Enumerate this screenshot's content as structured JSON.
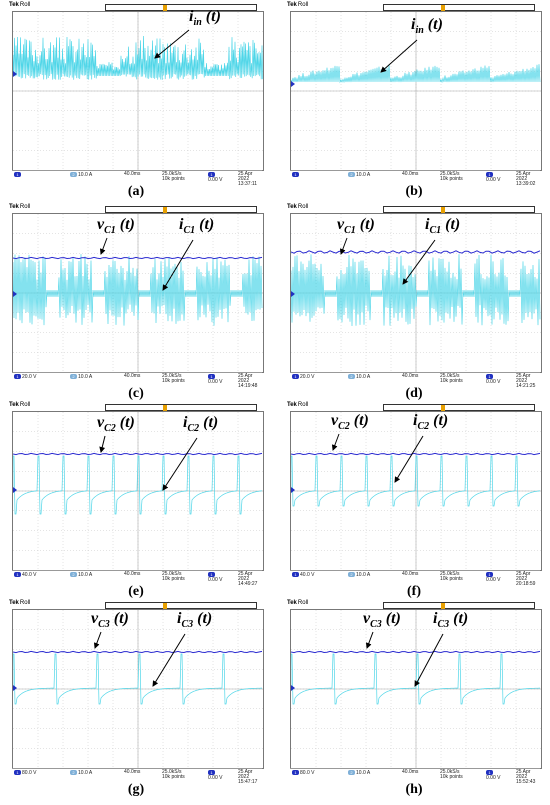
{
  "colors": {
    "ch1": "#2a2ad0",
    "ch2": "#4fd6e8",
    "trigger": "#e8a000"
  },
  "panels": [
    {
      "id": "a",
      "caption": "(a)",
      "labels": [
        {
          "base": "i",
          "sub": "in",
          "suffix": " (t)"
        }
      ],
      "status": {
        "ch1": "",
        "ch2": "10.0 A",
        "timebase": "40.0ms",
        "rate": "25.0kS/s",
        "points": "10k points",
        "trig": "0.00 V",
        "date": "25 Apr 2022",
        "time": "13:37:11"
      }
    },
    {
      "id": "b",
      "caption": "(b)",
      "labels": [
        {
          "base": "i",
          "sub": "in",
          "suffix": " (t)"
        }
      ],
      "status": {
        "ch1": "",
        "ch2": "10.0 A",
        "timebase": "40.0ms",
        "rate": "25.0kS/s",
        "points": "10k points",
        "trig": "0.00 V",
        "date": "25 Apr 2022",
        "time": "13:39:02"
      }
    },
    {
      "id": "c",
      "caption": "(c)",
      "labels": [
        {
          "base": "v",
          "sub": "C1",
          "suffix": " (t)"
        },
        {
          "base": "i",
          "sub": "C1",
          "suffix": " (t)"
        }
      ],
      "status": {
        "ch1": "20.0 V",
        "ch2": "10.0 A",
        "timebase": "40.0ms",
        "rate": "25.0kS/s",
        "points": "10k points",
        "trig": "0.00 V",
        "date": "25 Apr 2022",
        "time": "14:19:48"
      }
    },
    {
      "id": "d",
      "caption": "(d)",
      "labels": [
        {
          "base": "v",
          "sub": "C1",
          "suffix": " (t)"
        },
        {
          "base": "i",
          "sub": "C1",
          "suffix": " (t)"
        }
      ],
      "status": {
        "ch1": "20.0 V",
        "ch2": "10.0 A",
        "timebase": "40.0ms",
        "rate": "25.0kS/s",
        "points": "10k points",
        "trig": "0.00 V",
        "date": "25 Apr 2022",
        "time": "14:21:25"
      }
    },
    {
      "id": "e",
      "caption": "(e)",
      "labels": [
        {
          "base": "v",
          "sub": "C2",
          "suffix": " (t)"
        },
        {
          "base": "i",
          "sub": "C2",
          "suffix": " (t)"
        }
      ],
      "status": {
        "ch1": "40.0 V",
        "ch2": "10.0 A",
        "timebase": "40.0ms",
        "rate": "25.0kS/s",
        "points": "10k points",
        "trig": "0.00 V",
        "date": "25 Apr 2022",
        "time": "14:49:27"
      }
    },
    {
      "id": "f",
      "caption": "(f)",
      "labels": [
        {
          "base": "v",
          "sub": "C2",
          "suffix": " (t)"
        },
        {
          "base": "i",
          "sub": "C2",
          "suffix": " (t)"
        }
      ],
      "status": {
        "ch1": "40.0 V",
        "ch2": "10.0 A",
        "timebase": "40.0ms",
        "rate": "25.0kS/s",
        "points": "10k points",
        "trig": "0.00 V",
        "date": "25 Apr 2022",
        "time": "20:18:59"
      }
    },
    {
      "id": "g",
      "caption": "(g)",
      "labels": [
        {
          "base": "v",
          "sub": "C3",
          "suffix": " (t)"
        },
        {
          "base": "i",
          "sub": "C3",
          "suffix": " (t)"
        }
      ],
      "status": {
        "ch1": "80.0 V",
        "ch2": "10.0 A",
        "timebase": "40.0ms",
        "rate": "25.0kS/s",
        "points": "10k points",
        "trig": "0.00 V",
        "date": "25 Apr 2022",
        "time": "15:47:17"
      }
    },
    {
      "id": "h",
      "caption": "(h)",
      "labels": [
        {
          "base": "v",
          "sub": "C3",
          "suffix": " (t)"
        },
        {
          "base": "i",
          "sub": "C3",
          "suffix": " (t)"
        }
      ],
      "status": {
        "ch1": "80.0 V",
        "ch2": "10.0 A",
        "timebase": "40.0ms",
        "rate": "25.0kS/s",
        "points": "10k points",
        "trig": "0.00 V",
        "date": "25 Apr 2022",
        "time": "15:52:43"
      }
    }
  ],
  "tek_label": "Tek",
  "tek_mode": "Roll"
}
